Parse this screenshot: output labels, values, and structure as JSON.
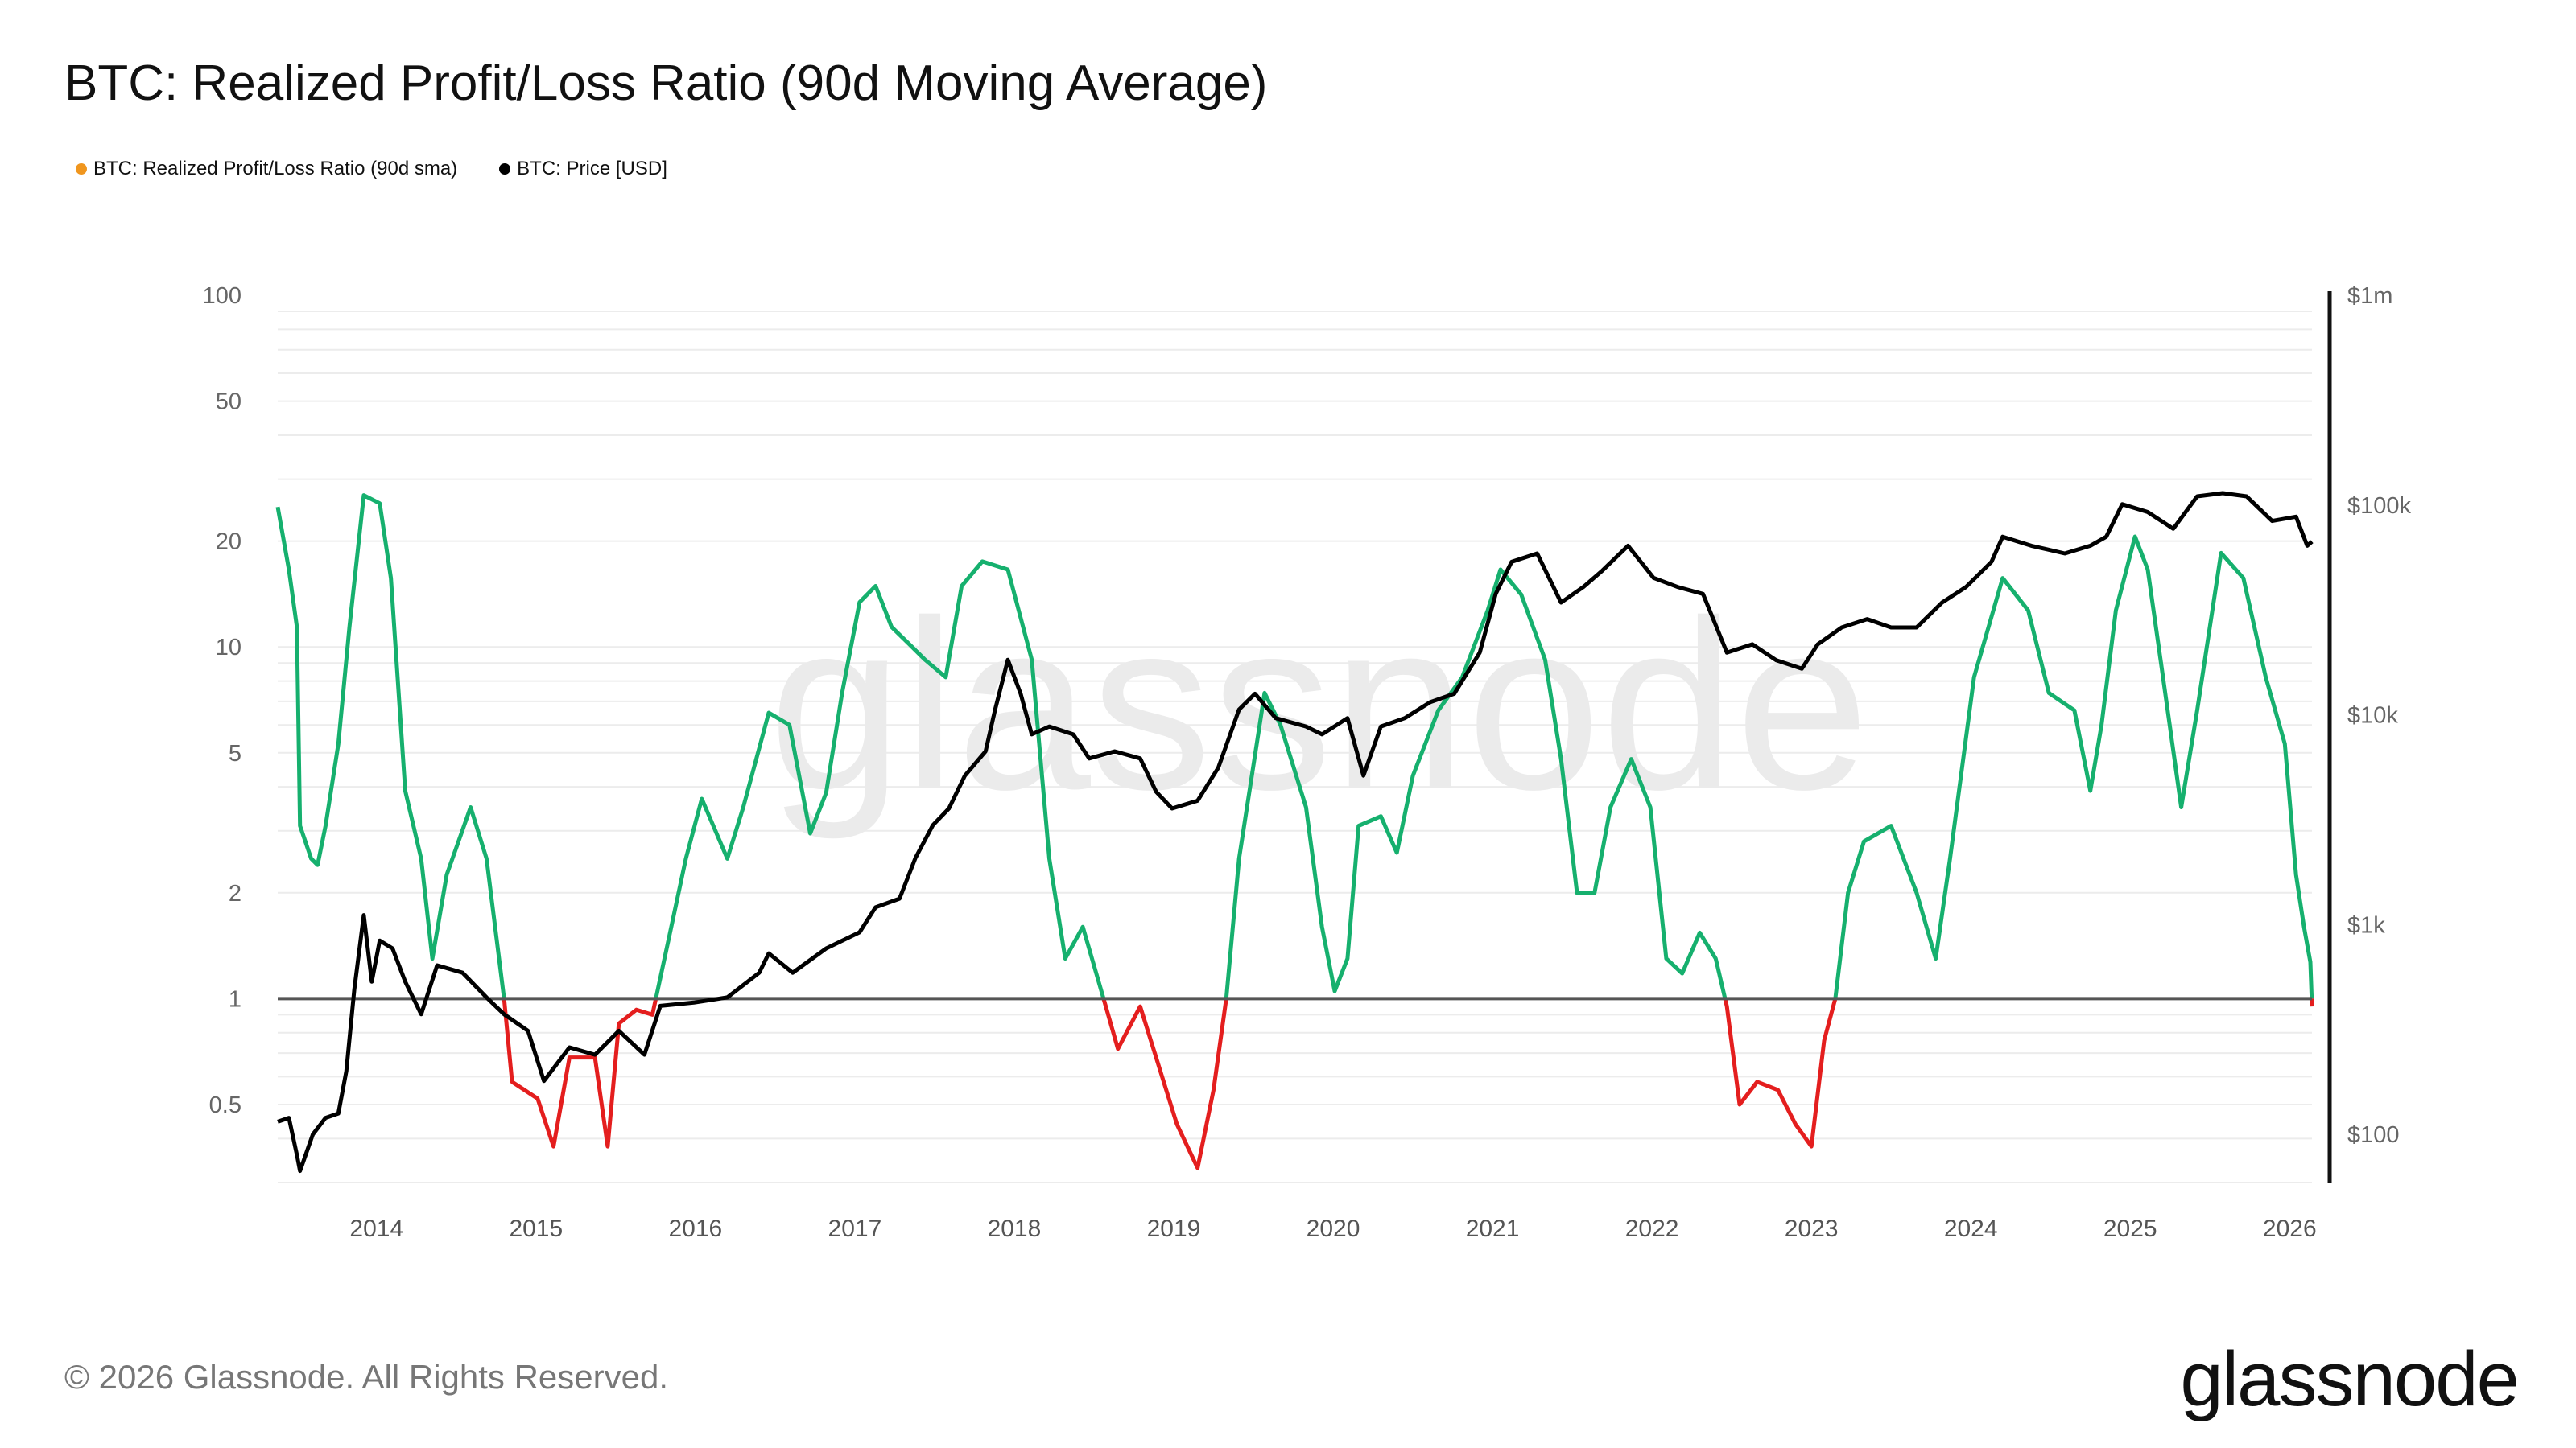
{
  "title": "BTC: Realized Profit/Loss Ratio (90d Moving Average)",
  "legend": [
    {
      "label": "BTC: Realized Profit/Loss Ratio (90d sma)",
      "color": "#f0961e"
    },
    {
      "label": "BTC: Price [USD]",
      "color": "#000000"
    }
  ],
  "footer": "© 2026 Glassnode. All Rights Reserved.",
  "logo": "glassnode",
  "watermark": "glassnode",
  "chart_data": {
    "type": "line",
    "title": "BTC: Realized Profit/Loss Ratio (90d Moving Average)",
    "x_ticks": [
      "2014",
      "2015",
      "2016",
      "2017",
      "2018",
      "2019",
      "2020",
      "2021",
      "2022",
      "2023",
      "2024",
      "2025",
      "2026"
    ],
    "xlim": [
      2013.38,
      2026.14
    ],
    "left_axis": {
      "scale": "log",
      "ylim": [
        0.3,
        100
      ],
      "ticks": [
        {
          "v": 100,
          "label": "100"
        },
        {
          "v": 50,
          "label": "50"
        },
        {
          "v": 20,
          "label": "20"
        },
        {
          "v": 10,
          "label": "10"
        },
        {
          "v": 5,
          "label": "5"
        },
        {
          "v": 2,
          "label": "2"
        },
        {
          "v": 1,
          "label": "1"
        },
        {
          "v": 0.5,
          "label": "0.5"
        }
      ]
    },
    "right_axis": {
      "scale": "log",
      "ylim": [
        59,
        1000000
      ],
      "ticks": [
        {
          "v": 1000000,
          "label": "$1m"
        },
        {
          "v": 100000,
          "label": "$100k"
        },
        {
          "v": 10000,
          "label": "$10k"
        },
        {
          "v": 1000,
          "label": "$1k"
        },
        {
          "v": 100,
          "label": "$100"
        }
      ]
    },
    "grid": true,
    "reference_line": 1,
    "colors": {
      "profit": "#16b06e",
      "loss": "#e41e1e",
      "price": "#000000",
      "reference": "#555555"
    },
    "series": [
      {
        "name": "BTC: Realized Profit/Loss Ratio (90d sma)",
        "axis": "left",
        "x": [
          2013.38,
          2013.45,
          2013.5,
          2013.52,
          2013.59,
          2013.63,
          2013.68,
          2013.76,
          2013.83,
          2013.92,
          2014.02,
          2014.09,
          2014.18,
          2014.28,
          2014.35,
          2014.44,
          2014.59,
          2014.69,
          2014.8,
          2014.85,
          2015.01,
          2015.11,
          2015.21,
          2015.37,
          2015.45,
          2015.52,
          2015.63,
          2015.73,
          2015.83,
          2015.94,
          2016.04,
          2016.2,
          2016.3,
          2016.46,
          2016.59,
          2016.72,
          2016.82,
          2016.92,
          2017.03,
          2017.13,
          2017.23,
          2017.34,
          2017.44,
          2017.57,
          2017.67,
          2017.8,
          2017.96,
          2018.11,
          2018.22,
          2018.32,
          2018.43,
          2018.56,
          2018.65,
          2018.79,
          2018.89,
          2019.02,
          2019.15,
          2019.25,
          2019.33,
          2019.41,
          2019.57,
          2019.67,
          2019.83,
          2019.93,
          2020.01,
          2020.09,
          2020.16,
          2020.3,
          2020.4,
          2020.5,
          2020.66,
          2020.81,
          2020.97,
          2021.05,
          2021.18,
          2021.33,
          2021.43,
          2021.53,
          2021.64,
          2021.74,
          2021.87,
          2021.99,
          2022.09,
          2022.19,
          2022.3,
          2022.4,
          2022.47,
          2022.55,
          2022.66,
          2022.79,
          2022.9,
          2023.0,
          2023.08,
          2023.15,
          2023.23,
          2023.33,
          2023.5,
          2023.66,
          2023.78,
          2023.87,
          2024.02,
          2024.2,
          2024.36,
          2024.49,
          2024.65,
          2024.75,
          2024.82,
          2024.91,
          2025.03,
          2025.11,
          2025.19,
          2025.32,
          2025.42,
          2025.57,
          2025.71,
          2025.85,
          2025.97,
          2026.04,
          2026.09,
          2026.13,
          2026.14
        ],
        "y": [
          25,
          16.6,
          11.4,
          3.1,
          2.5,
          2.4,
          3.1,
          5.3,
          11.4,
          27,
          25.6,
          15.7,
          3.9,
          2.5,
          1.3,
          2.25,
          3.5,
          2.5,
          1.0,
          0.58,
          0.52,
          0.38,
          0.68,
          0.68,
          0.38,
          0.85,
          0.93,
          0.9,
          1.46,
          2.5,
          3.7,
          2.5,
          3.5,
          6.5,
          6.0,
          2.95,
          3.85,
          7.4,
          13.4,
          14.9,
          11.4,
          10.2,
          9.2,
          8.2,
          14.9,
          17.5,
          16.6,
          9.2,
          2.5,
          1.3,
          1.6,
          1.0,
          0.72,
          0.95,
          0.68,
          0.44,
          0.33,
          0.55,
          1.0,
          2.5,
          7.4,
          6.0,
          3.5,
          1.6,
          1.05,
          1.3,
          3.1,
          3.3,
          2.6,
          4.3,
          6.6,
          8.2,
          12.7,
          16.6,
          14.1,
          9.2,
          4.8,
          2.0,
          2.0,
          3.5,
          4.8,
          3.5,
          1.3,
          1.18,
          1.54,
          1.3,
          0.95,
          0.5,
          0.58,
          0.55,
          0.44,
          0.38,
          0.76,
          1.0,
          2.0,
          2.8,
          3.1,
          2.0,
          1.3,
          2.5,
          8.2,
          15.7,
          12.7,
          7.4,
          6.6,
          3.9,
          6.0,
          12.7,
          20.6,
          16.6,
          9.2,
          3.5,
          6.6,
          18.5,
          15.7,
          8.2,
          5.3,
          2.25,
          1.6,
          1.27,
          0.95
        ]
      },
      {
        "name": "BTC: Price [USD]",
        "axis": "right",
        "x": [
          2013.38,
          2013.45,
          2013.5,
          2013.52,
          2013.6,
          2013.68,
          2013.76,
          2013.81,
          2013.86,
          2013.92,
          2013.97,
          2014.02,
          2014.1,
          2014.18,
          2014.28,
          2014.38,
          2014.54,
          2014.69,
          2014.8,
          2014.95,
          2015.05,
          2015.21,
          2015.37,
          2015.52,
          2015.68,
          2015.78,
          2015.99,
          2016.2,
          2016.4,
          2016.46,
          2016.61,
          2016.82,
          2017.03,
          2017.13,
          2017.28,
          2017.38,
          2017.49,
          2017.59,
          2017.69,
          2017.82,
          2017.88,
          2017.96,
          2018.04,
          2018.11,
          2018.22,
          2018.37,
          2018.47,
          2018.63,
          2018.79,
          2018.89,
          2018.99,
          2019.15,
          2019.28,
          2019.41,
          2019.51,
          2019.64,
          2019.83,
          2019.93,
          2020.09,
          2020.19,
          2020.3,
          2020.45,
          2020.61,
          2020.76,
          2020.92,
          2021.02,
          2021.12,
          2021.28,
          2021.43,
          2021.57,
          2021.69,
          2021.85,
          2022.01,
          2022.16,
          2022.32,
          2022.47,
          2022.63,
          2022.78,
          2022.94,
          2023.04,
          2023.19,
          2023.35,
          2023.5,
          2023.66,
          2023.82,
          2023.97,
          2024.13,
          2024.2,
          2024.38,
          2024.59,
          2024.75,
          2024.85,
          2024.95,
          2025.11,
          2025.27,
          2025.42,
          2025.58,
          2025.73,
          2025.89,
          2026.04,
          2026.11,
          2026.14
        ],
        "y": [
          115,
          120,
          80,
          67,
          100,
          120,
          126,
          200,
          490,
          1110,
          535,
          840,
          770,
          535,
          374,
          640,
          590,
          450,
          374,
          312,
          180,
          260,
          240,
          312,
          240,
          410,
          425,
          450,
          590,
          730,
          590,
          770,
          920,
          1210,
          1330,
          2080,
          2980,
          3580,
          5130,
          6700,
          10600,
          18300,
          12600,
          8070,
          8800,
          8070,
          6200,
          6700,
          6200,
          4300,
          3580,
          3900,
          5600,
          10600,
          12600,
          9650,
          8800,
          8070,
          9650,
          5130,
          8800,
          9650,
          11500,
          12600,
          19800,
          37700,
          53600,
          58800,
          34300,
          40700,
          48800,
          64000,
          45000,
          40700,
          37700,
          19800,
          21700,
          18200,
          16600,
          21700,
          26100,
          28600,
          26100,
          26100,
          34300,
          40700,
          53600,
          70600,
          64000,
          58800,
          64000,
          70600,
          100900,
          92600,
          77100,
          110000,
          114000,
          110000,
          84000,
          88000,
          64000,
          67000
        ]
      }
    ]
  }
}
